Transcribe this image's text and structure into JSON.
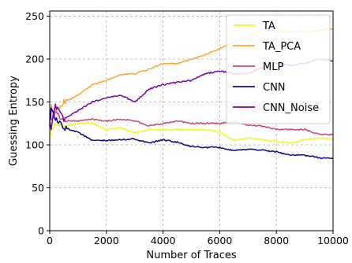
{
  "chart_data": {
    "type": "line",
    "xlabel": "Number of Traces",
    "ylabel": "Guessing Entropy",
    "xlim": [
      0,
      10000
    ],
    "ylim": [
      0,
      256
    ],
    "xticks": [
      0,
      2000,
      4000,
      6000,
      8000,
      10000
    ],
    "yticks": [
      0,
      50,
      100,
      150,
      200,
      250
    ],
    "xtick_labels": [
      "0",
      "2000",
      "4000",
      "6000",
      "8000",
      "10000"
    ],
    "ytick_labels": [
      "0",
      "50",
      "100",
      "150",
      "200",
      "250"
    ],
    "grid": true,
    "legend_position": "top-right",
    "series": [
      {
        "name": "TA",
        "color": "#f0f921",
        "x": [
          0,
          50,
          200,
          500,
          1000,
          1500,
          2000,
          2500,
          3000,
          3500,
          4000,
          4500,
          5000,
          5500,
          6000,
          6500,
          7000,
          7500,
          8000,
          8500,
          9000,
          9500,
          10000
        ],
        "values": [
          105,
          118,
          125,
          122,
          125,
          125,
          118,
          120,
          114,
          118,
          118,
          118,
          118,
          118,
          115,
          105,
          108,
          106,
          104,
          102,
          106,
          108,
          107
        ]
      },
      {
        "name": "TA_PCA",
        "color": "#fca636",
        "x": [
          0,
          50,
          200,
          500,
          1000,
          1500,
          2000,
          2500,
          3000,
          3500,
          4000,
          4500,
          5000,
          5500,
          6000,
          6500,
          7000,
          7500,
          8000,
          8500,
          9000,
          9500,
          10000
        ],
        "values": [
          140,
          144,
          138,
          150,
          158,
          170,
          175,
          182,
          183,
          188,
          195,
          195,
          200,
          205,
          212,
          220,
          226,
          235,
          232,
          232,
          232,
          233,
          236
        ]
      },
      {
        "name": "MLP",
        "color": "#cc4778",
        "x": [
          0,
          50,
          200,
          500,
          1000,
          1500,
          2000,
          2500,
          3000,
          3500,
          4000,
          4500,
          5000,
          5500,
          6000,
          6500,
          7000,
          7500,
          8000,
          8500,
          9000,
          9500,
          10000
        ],
        "values": [
          140,
          130,
          138,
          128,
          128,
          130,
          128,
          130,
          128,
          122,
          125,
          128,
          125,
          125,
          125,
          127,
          123,
          122,
          118,
          118,
          118,
          112,
          112
        ]
      },
      {
        "name": "CNN",
        "color": "#0d0887",
        "x": [
          0,
          50,
          200,
          500,
          1000,
          1500,
          2000,
          2500,
          3000,
          3500,
          4000,
          4500,
          5000,
          5500,
          6000,
          6500,
          7000,
          7500,
          8000,
          8500,
          9000,
          9500,
          10000
        ],
        "values": [
          125,
          140,
          130,
          120,
          115,
          105,
          105,
          106,
          107,
          102,
          106,
          103,
          98,
          97,
          97,
          93,
          95,
          94,
          92,
          88,
          88,
          85,
          84
        ]
      },
      {
        "name": "CNN_Noise",
        "color": "#7e03a8",
        "x": [
          0,
          50,
          200,
          500,
          1000,
          1500,
          2000,
          2500,
          3000,
          3500,
          4000,
          4500,
          5000,
          5500,
          6000,
          6500,
          7000,
          7500,
          8000,
          8500,
          9000,
          9500,
          10000
        ],
        "values": [
          130,
          118,
          145,
          130,
          140,
          150,
          155,
          158,
          150,
          165,
          170,
          173,
          175,
          183,
          186,
          183,
          183,
          190,
          195,
          193,
          195,
          200,
          198
        ]
      }
    ]
  }
}
